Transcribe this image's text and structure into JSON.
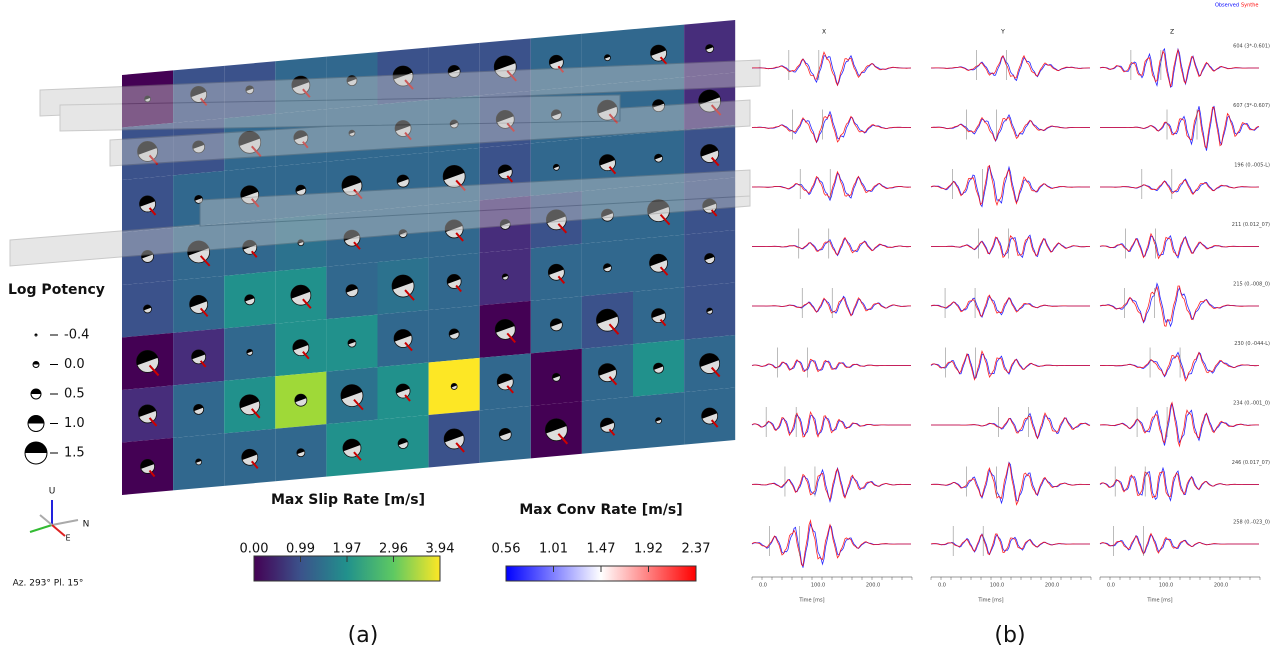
{
  "panel_a": {
    "legend": {
      "title": "Log Potency",
      "entries": [
        "-0.4",
        "0.0",
        "0.5",
        "1.0",
        "1.5"
      ]
    },
    "compass": {
      "up": "U",
      "north": "N",
      "east": "E",
      "caption": "Az. 293° Pl. 15°"
    },
    "slip_colorbar": {
      "title": "Max Slip Rate [m/s]",
      "ticks": [
        "0.00",
        "0.99",
        "1.97",
        "2.96",
        "3.94"
      ]
    },
    "conv_colorbar": {
      "title": "Max Conv Rate [m/s]",
      "ticks": [
        "0.56",
        "1.01",
        "1.47",
        "1.92",
        "2.37"
      ]
    },
    "label": "(a)"
  },
  "panel_b": {
    "legend": [
      "Observed",
      "Synthe"
    ],
    "columns": [
      {
        "header": "X",
        "ticks": [
          "0.0",
          "100.0",
          "200.0"
        ],
        "xlabel": "Time [ms]"
      },
      {
        "header": "Y",
        "ticks": [
          "0.0",
          "100.0",
          "200.0"
        ],
        "xlabel": "Time [ms]"
      },
      {
        "header": "Z",
        "ticks": [
          "0.0",
          "100.0",
          "200.0"
        ],
        "xlabel": "Time [ms]"
      }
    ],
    "stations": [
      "604 (3*-0.601)",
      "607 (3*-0.607)",
      "196 (0.-005-L)",
      "211 (0.012_07)",
      "215 (0.-008_0)",
      "230 (0.-044-L)",
      "234 (0.-001_0)",
      "246 (0.017_07)",
      "258 (0.-023_0)"
    ],
    "label": "(b)"
  }
}
